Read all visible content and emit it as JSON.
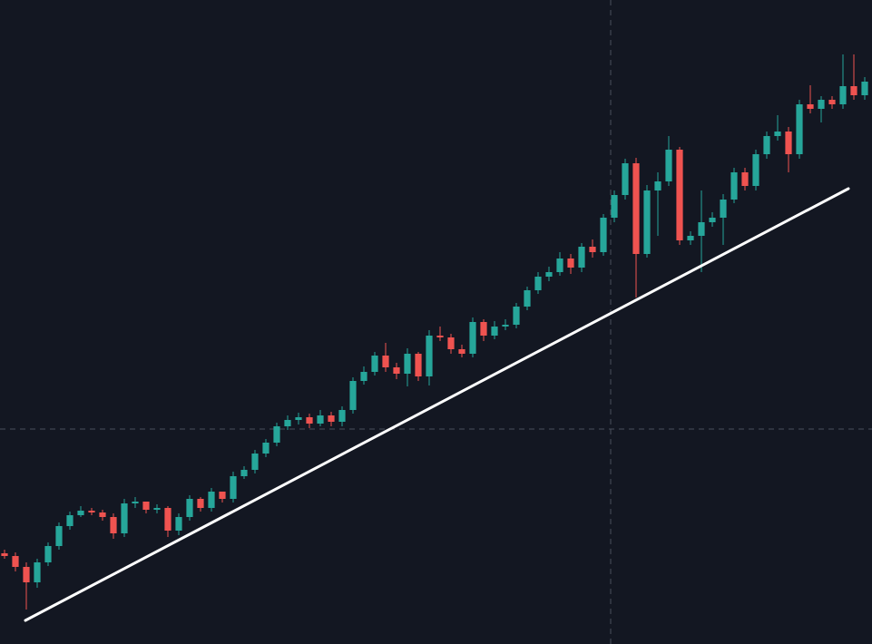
{
  "chart_data": {
    "type": "candlestick",
    "ylim": [
      0,
      710
    ],
    "up_color": "#26a69a",
    "down_color": "#ef5350",
    "open": [
      100,
      97,
      85,
      68,
      90,
      108,
      130,
      142,
      147,
      145,
      140,
      122,
      155,
      157,
      148,
      150,
      125,
      140,
      160,
      150,
      168,
      160,
      185,
      192,
      210,
      222,
      240,
      247,
      250,
      243,
      252,
      245,
      258,
      290,
      300,
      318,
      305,
      298,
      320,
      295,
      340,
      338,
      325,
      320,
      355,
      340,
      350,
      352,
      372,
      390,
      405,
      410,
      425,
      415,
      438,
      432,
      470,
      495,
      530,
      430,
      500,
      510,
      545,
      445,
      450,
      465,
      470,
      490,
      520,
      505,
      540,
      560,
      565,
      540,
      595,
      590,
      600,
      595,
      615,
      605
    ],
    "high": [
      104,
      101,
      90,
      94,
      112,
      134,
      146,
      152,
      150,
      148,
      144,
      160,
      162,
      156,
      154,
      152,
      144,
      164,
      162,
      172,
      166,
      190,
      196,
      214,
      226,
      244,
      252,
      255,
      254,
      258,
      256,
      262,
      294,
      306,
      322,
      332,
      310,
      326,
      322,
      346,
      350,
      342,
      330,
      360,
      358,
      356,
      358,
      376,
      394,
      410,
      416,
      432,
      430,
      442,
      446,
      474,
      500,
      535,
      536,
      506,
      520,
      560,
      548,
      455,
      500,
      476,
      496,
      525,
      525,
      545,
      565,
      583,
      570,
      600,
      616,
      604,
      604,
      650,
      650,
      625
    ],
    "low": [
      94,
      80,
      38,
      62,
      86,
      104,
      126,
      140,
      142,
      136,
      116,
      118,
      150,
      144,
      144,
      118,
      120,
      136,
      146,
      146,
      156,
      156,
      182,
      188,
      206,
      218,
      236,
      242,
      238,
      240,
      240,
      240,
      254,
      286,
      296,
      300,
      292,
      284,
      290,
      285,
      334,
      320,
      316,
      316,
      334,
      336,
      346,
      348,
      368,
      386,
      400,
      406,
      408,
      410,
      426,
      428,
      465,
      490,
      382,
      426,
      450,
      505,
      440,
      440,
      410,
      460,
      440,
      486,
      500,
      500,
      535,
      555,
      520,
      535,
      585,
      575,
      590,
      590,
      600,
      600
    ],
    "close": [
      97,
      85,
      68,
      90,
      108,
      130,
      142,
      147,
      145,
      140,
      122,
      155,
      157,
      148,
      150,
      125,
      140,
      160,
      150,
      168,
      160,
      185,
      192,
      210,
      222,
      240,
      247,
      250,
      243,
      252,
      245,
      258,
      290,
      300,
      318,
      305,
      298,
      320,
      295,
      340,
      338,
      325,
      320,
      355,
      340,
      350,
      352,
      372,
      390,
      405,
      410,
      425,
      415,
      438,
      432,
      470,
      495,
      530,
      430,
      500,
      510,
      545,
      445,
      450,
      465,
      470,
      490,
      520,
      505,
      540,
      560,
      565,
      540,
      595,
      590,
      600,
      595,
      615,
      605,
      620
    ]
  }
}
